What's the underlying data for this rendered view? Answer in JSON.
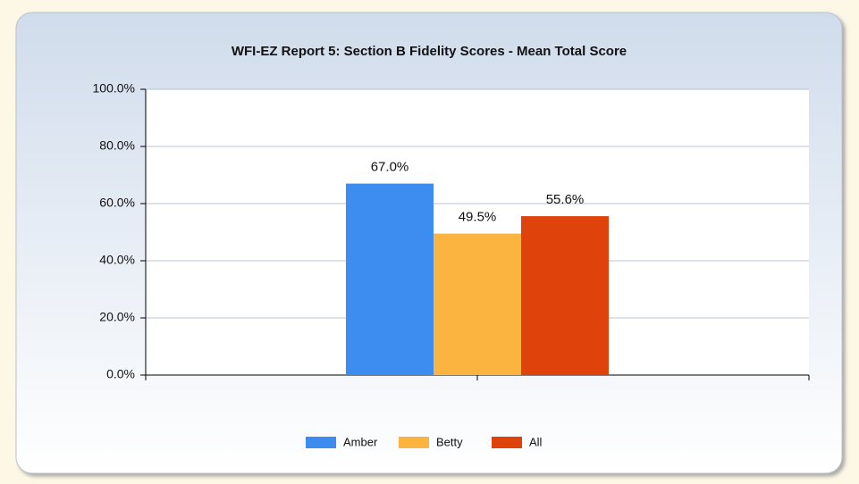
{
  "chart_data": {
    "type": "bar",
    "title": "WFI-EZ Report 5: Section B Fidelity Scores - Mean Total Score",
    "categories": [
      null
    ],
    "series": [
      {
        "name": "Amber",
        "color": "#3d8df0",
        "values": [
          67.0
        ],
        "value_labels": [
          "67.0%"
        ]
      },
      {
        "name": "Betty",
        "color": "#fbb43f",
        "values": [
          49.5
        ],
        "value_labels": [
          "49.5%"
        ]
      },
      {
        "name": "All",
        "color": "#e0420b",
        "values": [
          55.6
        ],
        "value_labels": [
          "55.6%"
        ]
      }
    ],
    "ylim": [
      0,
      100
    ],
    "yticks": [
      {
        "value": 0,
        "label": "0.0%"
      },
      {
        "value": 20,
        "label": "20.0%"
      },
      {
        "value": 40,
        "label": "40.0%"
      },
      {
        "value": 60,
        "label": "60.0%"
      },
      {
        "value": 80,
        "label": "80.0%"
      },
      {
        "value": 100,
        "label": "100.0%"
      }
    ],
    "grid": true,
    "legend": "bottom"
  }
}
